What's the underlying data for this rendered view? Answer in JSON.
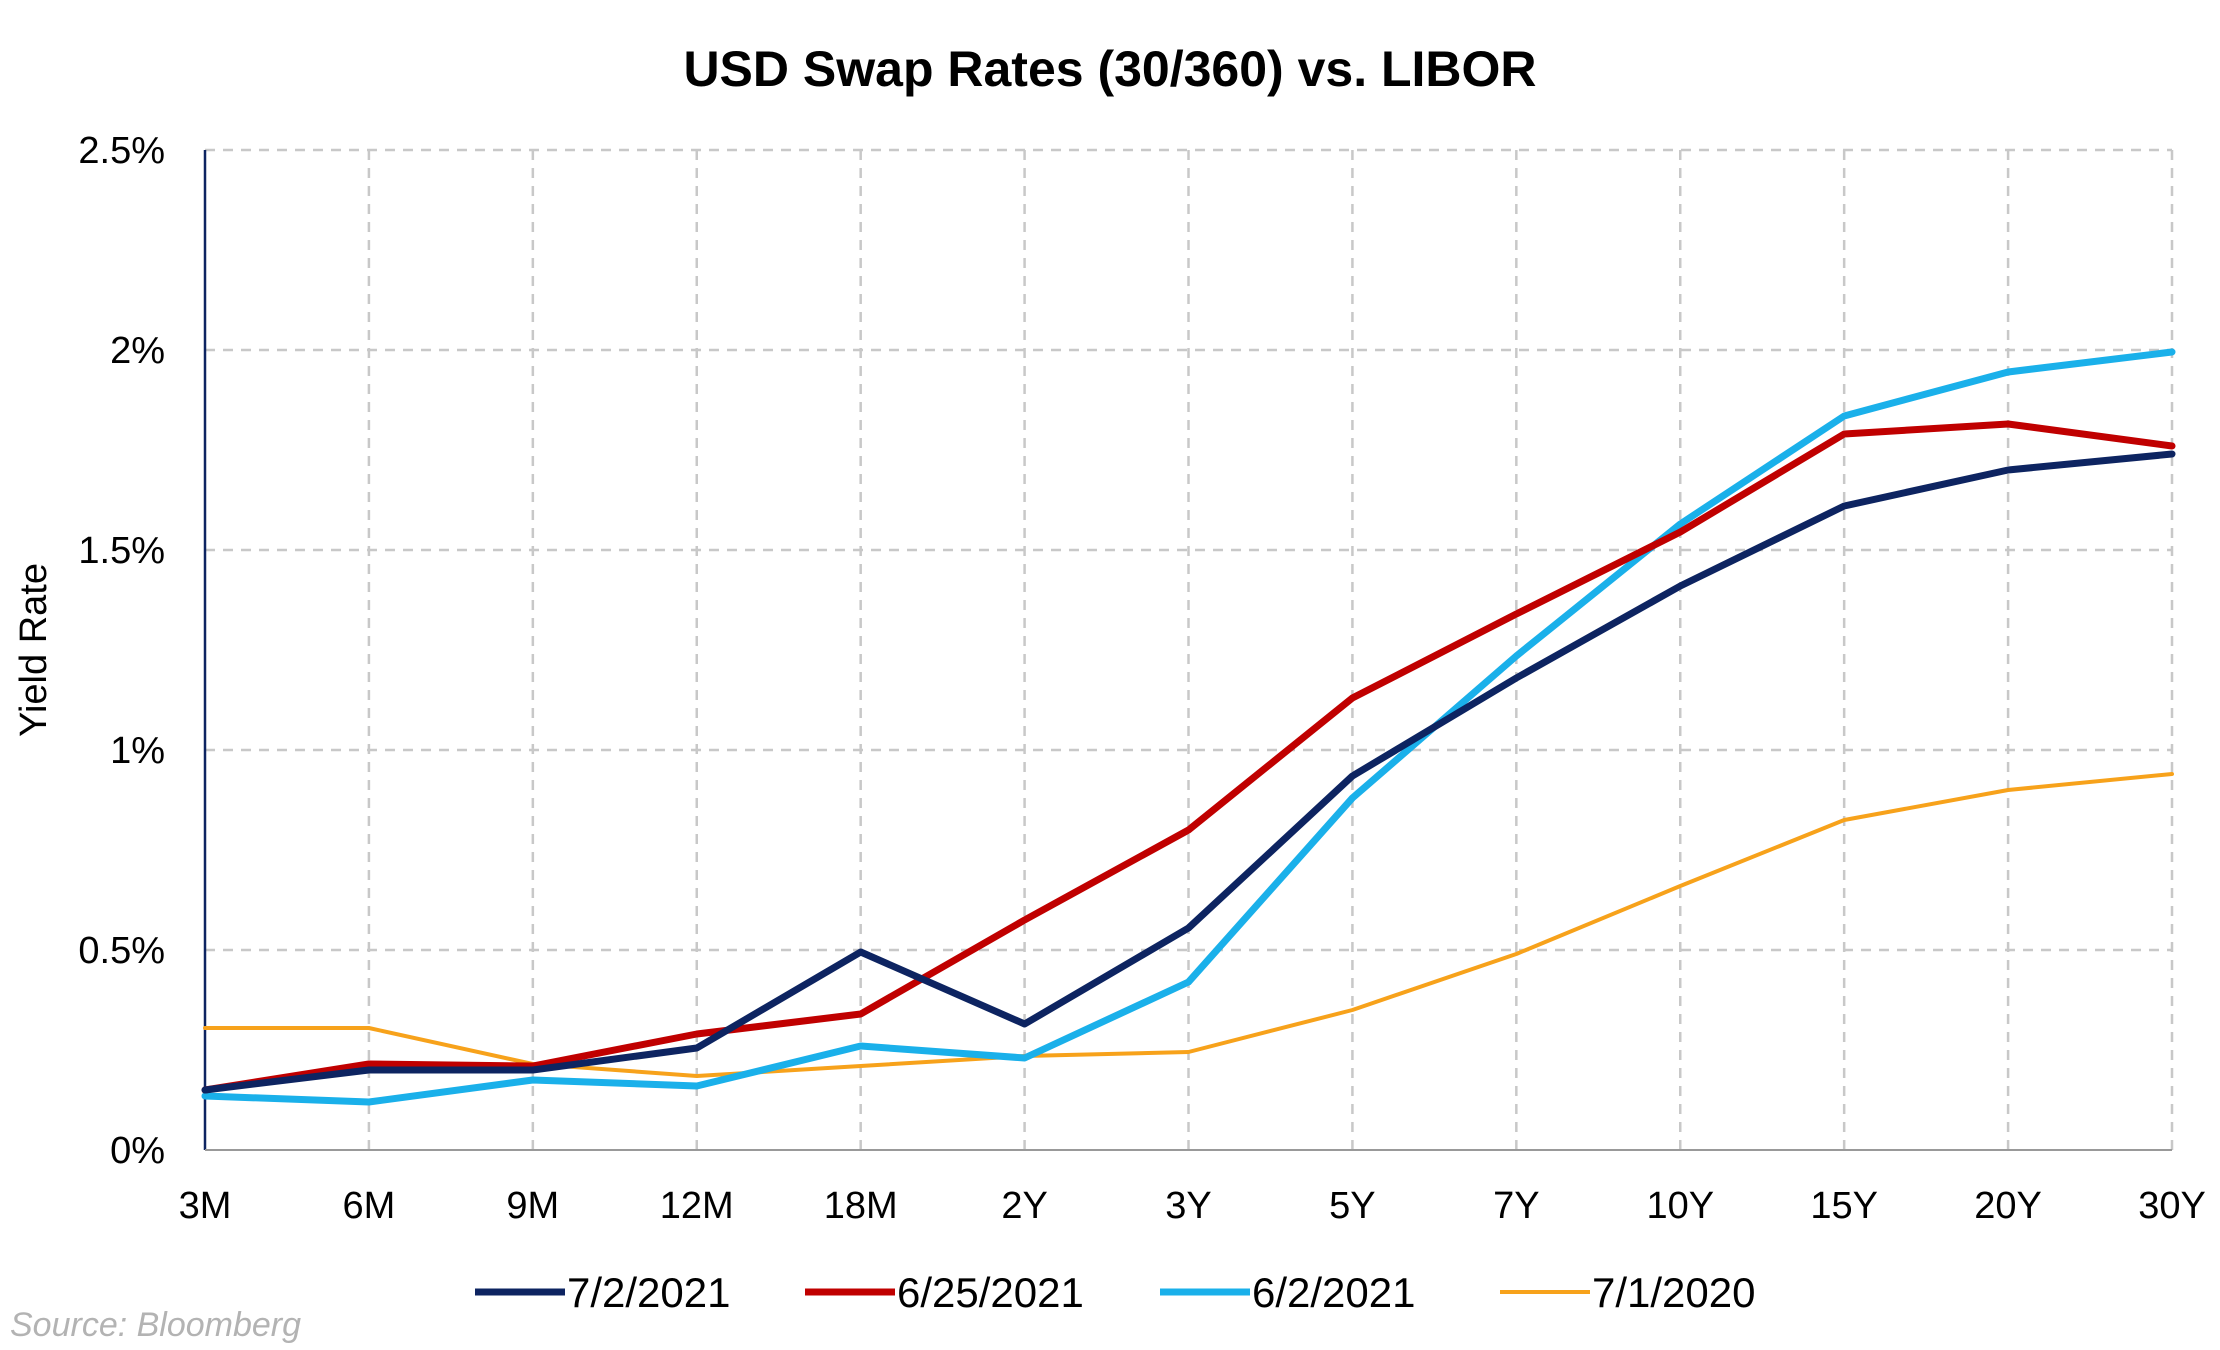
{
  "chart_data": {
    "type": "line",
    "title": "USD Swap Rates (30/360) vs. LIBOR",
    "xlabel": "",
    "ylabel": "Yield Rate",
    "categories": [
      "3M",
      "6M",
      "9M",
      "12M",
      "18M",
      "2Y",
      "3Y",
      "5Y",
      "7Y",
      "10Y",
      "15Y",
      "20Y",
      "30Y"
    ],
    "ylim": [
      0,
      2.5
    ],
    "yticks": [
      {
        "value": 0,
        "label": "0%"
      },
      {
        "value": 0.5,
        "label": "0.5%"
      },
      {
        "value": 1,
        "label": "1%"
      },
      {
        "value": 1.5,
        "label": "1.5%"
      },
      {
        "value": 2,
        "label": "2%"
      },
      {
        "value": 2.5,
        "label": "2.5%"
      }
    ],
    "grid": true,
    "legend_position": "bottom",
    "series": [
      {
        "name": "7/2/2021",
        "color": "#0d2461",
        "values": [
          0.15,
          0.2,
          0.2,
          0.255,
          0.495,
          0.315,
          0.555,
          0.935,
          1.18,
          1.41,
          1.61,
          1.7,
          1.74
        ]
      },
      {
        "name": "6/25/2021",
        "color": "#c00000",
        "values": [
          0.15,
          0.215,
          0.21,
          0.29,
          0.34,
          0.575,
          0.8,
          1.13,
          1.34,
          1.545,
          1.79,
          1.815,
          1.76
        ]
      },
      {
        "name": "6/2/2021",
        "color": "#1ab0ea",
        "values": [
          0.135,
          0.12,
          0.175,
          0.16,
          0.26,
          0.23,
          0.42,
          0.88,
          1.235,
          1.565,
          1.835,
          1.945,
          1.995
        ]
      },
      {
        "name": "7/1/2020",
        "color": "#f7a21b",
        "values": [
          0.305,
          0.305,
          0.215,
          0.185,
          0.21,
          0.235,
          0.245,
          0.35,
          0.49,
          0.66,
          0.825,
          0.9,
          0.94
        ]
      }
    ]
  },
  "source_note": "Source: Bloomberg"
}
